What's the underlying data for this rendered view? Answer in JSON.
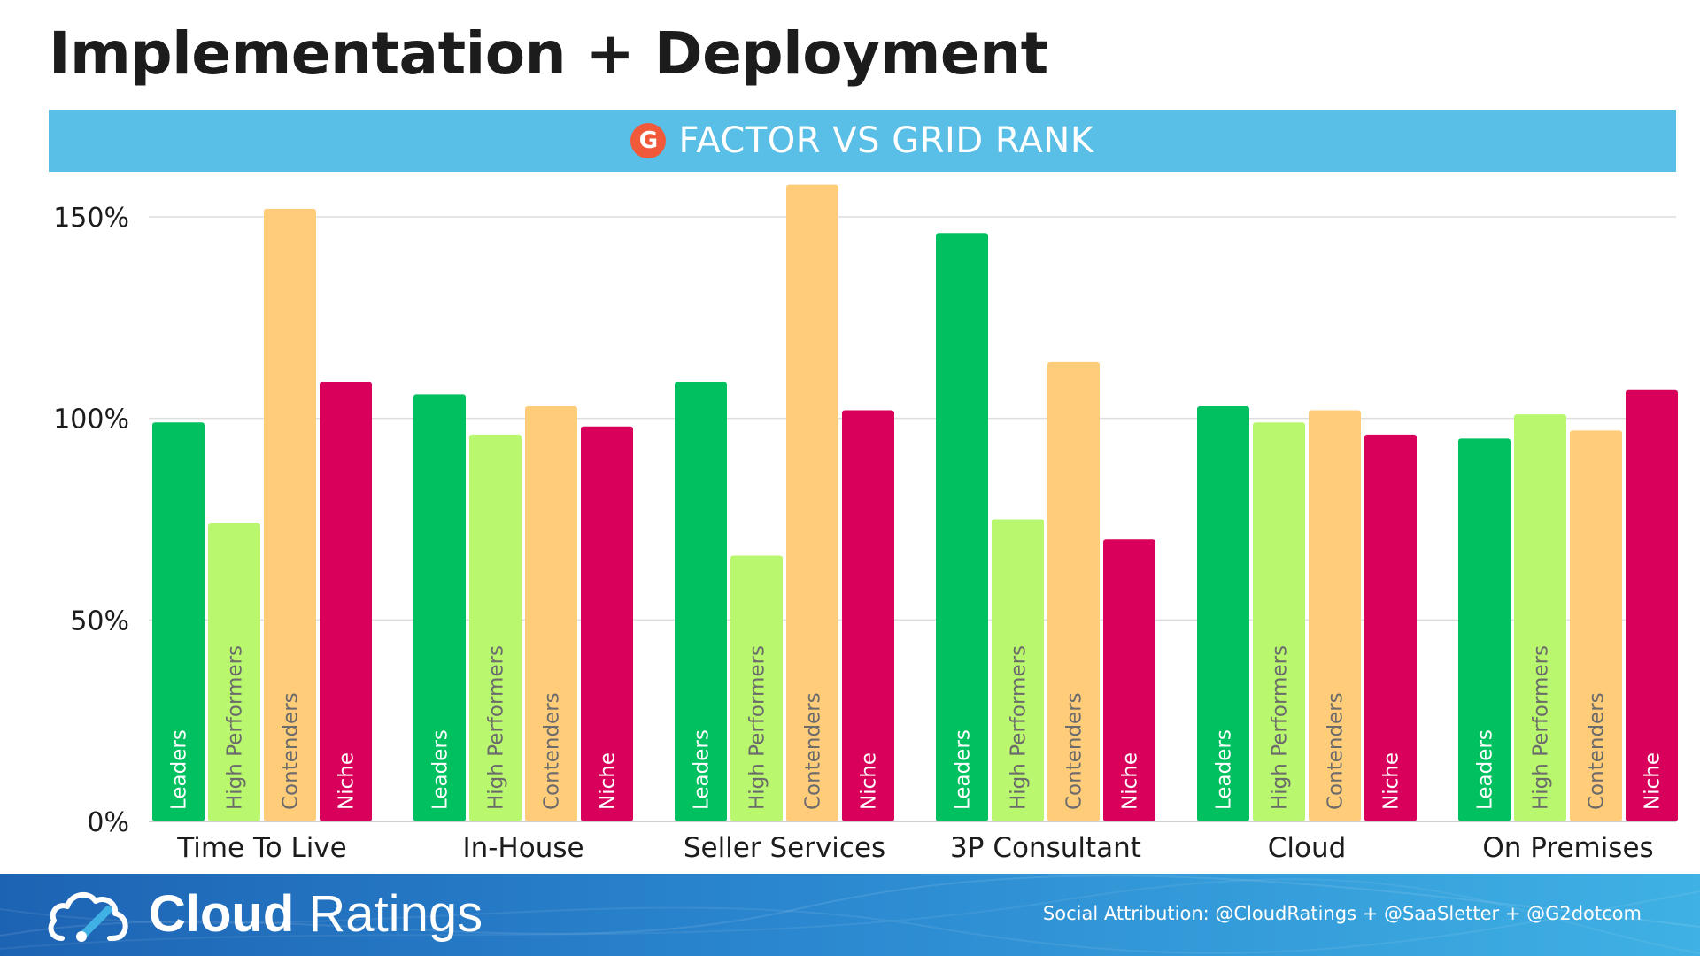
{
  "title": "Implementation + Deployment",
  "banner": {
    "logo_icon": "g2-logo-icon",
    "logo_text": "G",
    "text": "FACTOR VS GRID RANK"
  },
  "chart_data": {
    "type": "bar",
    "categories": [
      "Time To Live",
      "In-House",
      "Seller Services",
      "3P Consultant",
      "Cloud",
      "On Premises"
    ],
    "series": [
      {
        "name": "Leaders",
        "color": "#00c060",
        "label_color": "#ffffff",
        "values": [
          99,
          106,
          109,
          146,
          103,
          95
        ]
      },
      {
        "name": "High Performers",
        "color": "#b8f76e",
        "label_color": "#6b6b6b",
        "values": [
          74,
          96,
          66,
          75,
          99,
          101
        ]
      },
      {
        "name": "Contenders",
        "color": "#ffcc7a",
        "label_color": "#6b6b6b",
        "values": [
          152,
          103,
          158,
          114,
          102,
          97
        ]
      },
      {
        "name": "Niche",
        "color": "#d8005a",
        "label_color": "#ffffff",
        "values": [
          109,
          98,
          102,
          70,
          96,
          107
        ]
      }
    ],
    "yticks": [
      "0%",
      "50%",
      "100%",
      "150%"
    ],
    "ytick_values": [
      0,
      50,
      100,
      150
    ],
    "ylim": [
      0,
      160
    ],
    "grid": true,
    "legend": "none"
  },
  "footer": {
    "brand_bold": "Cloud",
    "brand_light": "Ratings",
    "logo_icon": "cloud-gauge-icon",
    "attribution": "Social Attribution: @CloudRatings + @SaaSletter + @G2dotcom"
  }
}
